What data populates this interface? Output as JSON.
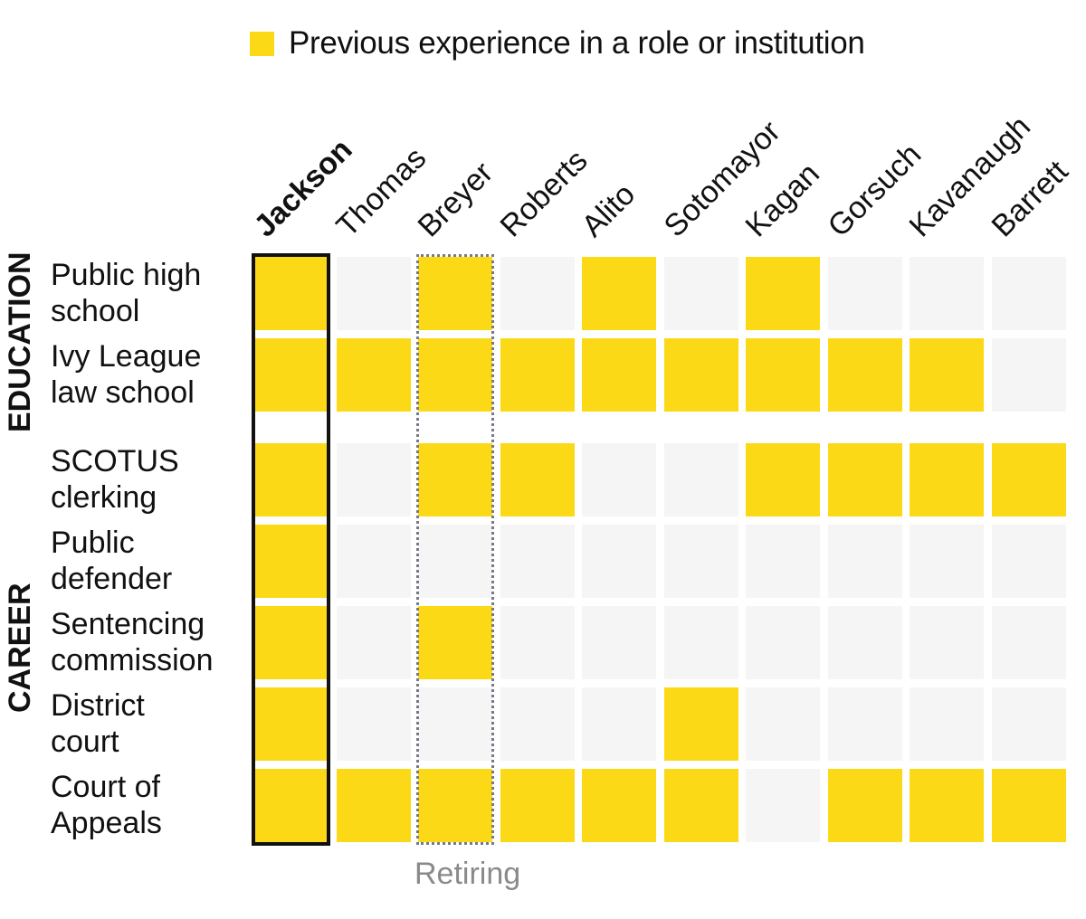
{
  "legend": {
    "label": "Previous experience in a role or institution",
    "color": "#fcd916"
  },
  "colors": {
    "yes": "#fcd916",
    "no": "#f5f5f5",
    "highlight_border": "#111111",
    "retiring_border": "#777a85",
    "retiring_text": "#8a8a8a"
  },
  "groups": [
    {
      "label": "EDUCATION"
    },
    {
      "label": "CAREER"
    }
  ],
  "annotation": {
    "retiring_label": "Retiring"
  },
  "chart_data": {
    "type": "heatmap",
    "title": "",
    "legend": [
      "Previous experience in a role or institution"
    ],
    "legend_position": "top",
    "columns": [
      "Jackson",
      "Thomas",
      "Breyer",
      "Roberts",
      "Alito",
      "Sotomayor",
      "Kagan",
      "Gorsuch",
      "Kavanaugh",
      "Barrett"
    ],
    "highlighted_column": "Jackson",
    "retiring_column": "Breyer",
    "rows": [
      {
        "group": "EDUCATION",
        "label_lines": [
          "Public high",
          "school"
        ],
        "values": [
          1,
          0,
          1,
          0,
          1,
          0,
          1,
          0,
          0,
          0
        ]
      },
      {
        "group": "EDUCATION",
        "label_lines": [
          "Ivy League",
          "law school"
        ],
        "values": [
          1,
          1,
          1,
          1,
          1,
          1,
          1,
          1,
          1,
          0
        ]
      },
      {
        "group": "CAREER",
        "label_lines": [
          "SCOTUS",
          "clerking"
        ],
        "values": [
          1,
          0,
          1,
          1,
          0,
          0,
          1,
          1,
          1,
          1
        ]
      },
      {
        "group": "CAREER",
        "label_lines": [
          "Public",
          "defender"
        ],
        "values": [
          1,
          0,
          0,
          0,
          0,
          0,
          0,
          0,
          0,
          0
        ]
      },
      {
        "group": "CAREER",
        "label_lines": [
          "Sentencing",
          "commission"
        ],
        "values": [
          1,
          0,
          1,
          0,
          0,
          0,
          0,
          0,
          0,
          0
        ]
      },
      {
        "group": "CAREER",
        "label_lines": [
          "District",
          "court"
        ],
        "values": [
          1,
          0,
          0,
          0,
          0,
          1,
          0,
          0,
          0,
          0
        ]
      },
      {
        "group": "CAREER",
        "label_lines": [
          "Court of",
          "Appeals"
        ],
        "values": [
          1,
          1,
          1,
          1,
          1,
          1,
          0,
          1,
          1,
          1
        ]
      }
    ]
  }
}
